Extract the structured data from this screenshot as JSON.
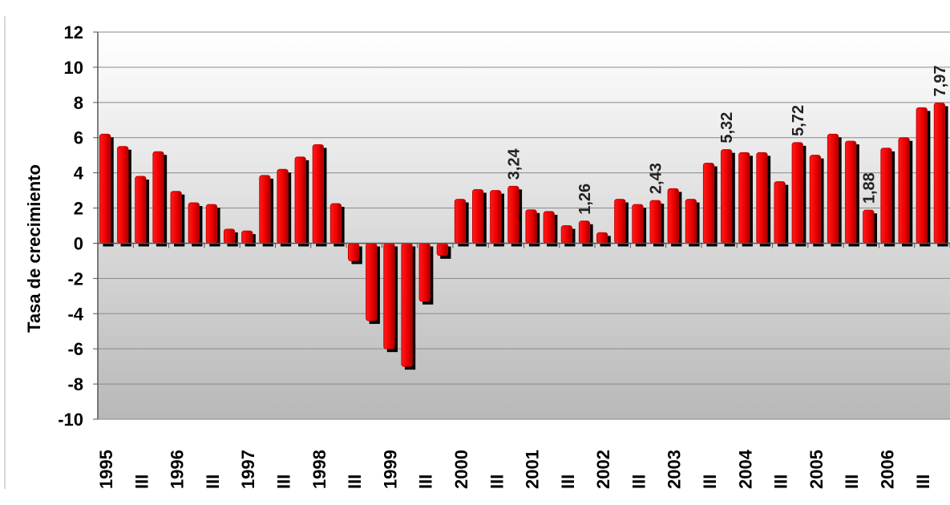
{
  "chart_data": {
    "type": "bar",
    "title": "",
    "xlabel": "",
    "ylabel": "Tasa de crecimiento",
    "ylim": [
      -10,
      12
    ],
    "yticks": [
      "12",
      "10",
      "8",
      "6",
      "4",
      "2",
      "0",
      "-2",
      "-4",
      "-6",
      "-8",
      "-10"
    ],
    "grid": true,
    "legend": "none",
    "colors": {
      "bar": "#ff0000",
      "bar_dark": "#b00000",
      "shadow": "#000000",
      "bg_top": "#ffffff",
      "bg_bottom": "#b8b8b8"
    },
    "categories": [
      "1995",
      "",
      "III",
      "",
      "1996",
      "",
      "III",
      "",
      "1997",
      "",
      "III",
      "",
      "1998",
      "",
      "III",
      "",
      "1999",
      "",
      "III",
      "",
      "2000",
      "",
      "III",
      "",
      "2001",
      "",
      "III",
      "",
      "2002",
      "",
      "III",
      "",
      "2003",
      "",
      "III",
      "",
      "2004",
      "",
      "III",
      "",
      "2005",
      "",
      "III",
      "",
      "2006",
      "",
      "III",
      ""
    ],
    "values": [
      6.2,
      5.5,
      3.8,
      5.2,
      2.95,
      2.3,
      2.2,
      0.8,
      0.7,
      3.85,
      4.2,
      4.9,
      5.6,
      2.25,
      -1.0,
      -4.4,
      -6.0,
      -7.0,
      -3.3,
      -0.7,
      2.5,
      3.05,
      3.0,
      3.24,
      1.9,
      1.8,
      1.0,
      1.26,
      0.6,
      2.5,
      2.2,
      2.43,
      3.1,
      2.5,
      4.55,
      5.32,
      5.15,
      5.15,
      3.5,
      5.72,
      5.0,
      6.2,
      5.8,
      1.88,
      5.4,
      6.0,
      7.7,
      7.97
    ],
    "data_labels": [
      {
        "index": 23,
        "text": "3,24"
      },
      {
        "index": 27,
        "text": "1,26"
      },
      {
        "index": 31,
        "text": "2,43"
      },
      {
        "index": 35,
        "text": "5,32"
      },
      {
        "index": 39,
        "text": "5,72"
      },
      {
        "index": 43,
        "text": "1,88"
      },
      {
        "index": 47,
        "text": "7,97"
      }
    ]
  }
}
